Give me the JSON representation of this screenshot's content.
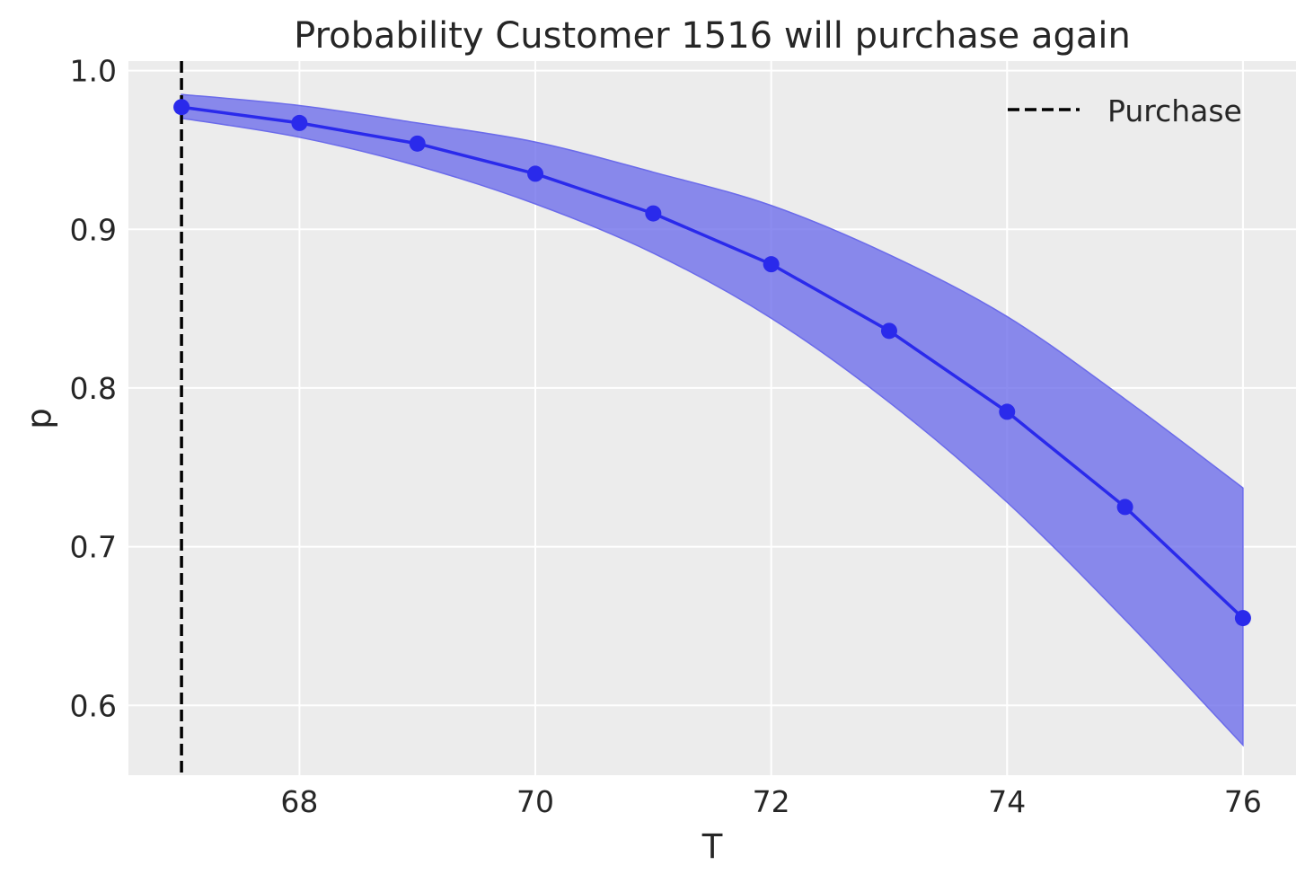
{
  "chart_data": {
    "type": "line",
    "title": "Probability Customer 1516 will purchase again",
    "xlabel": "T",
    "ylabel": "p",
    "xlim": [
      66.55,
      76.45
    ],
    "ylim": [
      0.556,
      1.006
    ],
    "x_ticks": [
      68,
      70,
      72,
      74,
      76
    ],
    "y_ticks": [
      0.6,
      0.7,
      0.8,
      0.9,
      1.0
    ],
    "x_tick_labels": [
      "68",
      "70",
      "72",
      "74",
      "76"
    ],
    "y_tick_labels": [
      "0.6",
      "0.7",
      "0.8",
      "0.9",
      "1.0"
    ],
    "grid": true,
    "legend_position": "upper right",
    "series": [
      {
        "x": [
          67,
          68,
          69,
          70,
          71,
          72,
          73,
          74,
          75,
          76
        ],
        "values": [
          0.977,
          0.967,
          0.954,
          0.935,
          0.91,
          0.878,
          0.836,
          0.785,
          0.725,
          0.655
        ],
        "band_lower": [
          0.97,
          0.958,
          0.94,
          0.916,
          0.885,
          0.844,
          0.791,
          0.728,
          0.654,
          0.575
        ],
        "band_upper": [
          0.985,
          0.978,
          0.967,
          0.955,
          0.936,
          0.915,
          0.884,
          0.845,
          0.793,
          0.737
        ],
        "color": "#2a2aeb",
        "band_color": "#6b6bea"
      }
    ],
    "vlines": [
      {
        "x": 67,
        "name": "Purchase",
        "style": "dashed",
        "color": "#000000"
      }
    ],
    "plot_background": "#ececec"
  }
}
